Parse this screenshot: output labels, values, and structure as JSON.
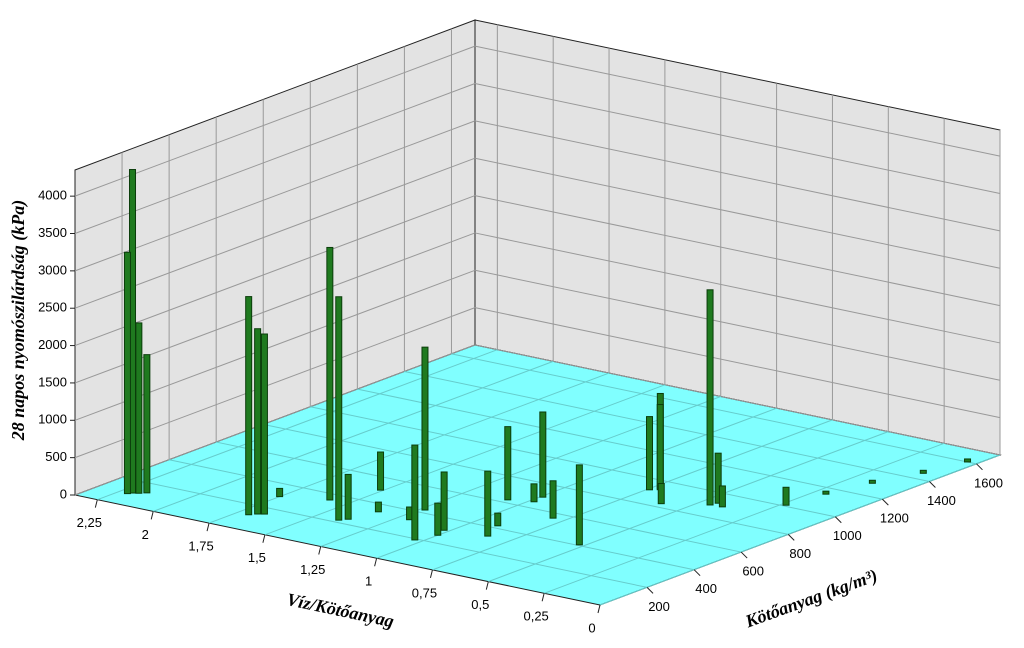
{
  "chart_data": {
    "type": "bar3d",
    "xlabel": "Víz/Kötőanyag",
    "ylabel": "Kötőanyag (kg/m³)",
    "zlabel": "28 napos nyomószilárdság (kPa)",
    "color": "#1f7a1f",
    "wall_color": "#e3e3e3",
    "floor_color": "#80ffff",
    "grid": true,
    "xlim": [
      0,
      2.35
    ],
    "xticks": [
      0,
      {
        "value": 0.25,
        "label": "0,25"
      },
      {
        "value": 0.5,
        "label": "0,5"
      },
      {
        "value": 0.75,
        "label": "0,75"
      },
      1,
      {
        "value": 1.25,
        "label": "1,25"
      },
      {
        "value": 1.5,
        "label": "1,5"
      },
      {
        "value": 1.75,
        "label": "1,75"
      },
      2,
      {
        "value": 2.25,
        "label": "2,25"
      }
    ],
    "ylim": [
      0,
      1700
    ],
    "yticks": [
      200,
      400,
      600,
      800,
      1000,
      1200,
      1400,
      1600
    ],
    "zlim": [
      0,
      4350
    ],
    "zticks": [
      0,
      500,
      1000,
      1500,
      2000,
      2500,
      3000,
      3500,
      4000
    ],
    "x": [
      2.2,
      2.21,
      2.18,
      2.16,
      1.7,
      1.68,
      1.66,
      1.58,
      1.4,
      1.38,
      1.51,
      1.23,
      1.03,
      1.02,
      1.0,
      1.2,
      1.75,
      1.35,
      0.9,
      1.07,
      0.85,
      0.98,
      0.99,
      0.8,
      0.52,
      0.74,
      0.72,
      0.71,
      0.6,
      0.45,
      0.44,
      0.4,
      0.23,
      0.2,
      0.15,
      0.08,
      0.04
    ],
    "y": [
      102,
      90,
      110,
      125,
      121,
      140,
      150,
      352,
      219,
      240,
      501,
      424,
      191,
      306,
      260,
      330,
      300,
      340,
      420,
      624,
      330,
      650,
      697,
      560,
      406,
      913,
      940,
      930,
      830,
      895,
      920,
      900,
      1009,
      1150,
      1300,
      1450,
      1600
    ],
    "values": [
      4330,
      3230,
      2280,
      1850,
      2920,
      2480,
      2410,
      3380,
      2990,
      600,
      510,
      2180,
      1270,
      780,
      430,
      170,
      110,
      130,
      170,
      980,
      870,
      240,
      1140,
      500,
      1070,
      980,
      1270,
      1140,
      270,
      2880,
      670,
      280,
      240,
      20,
      20,
      20,
      20
    ]
  }
}
